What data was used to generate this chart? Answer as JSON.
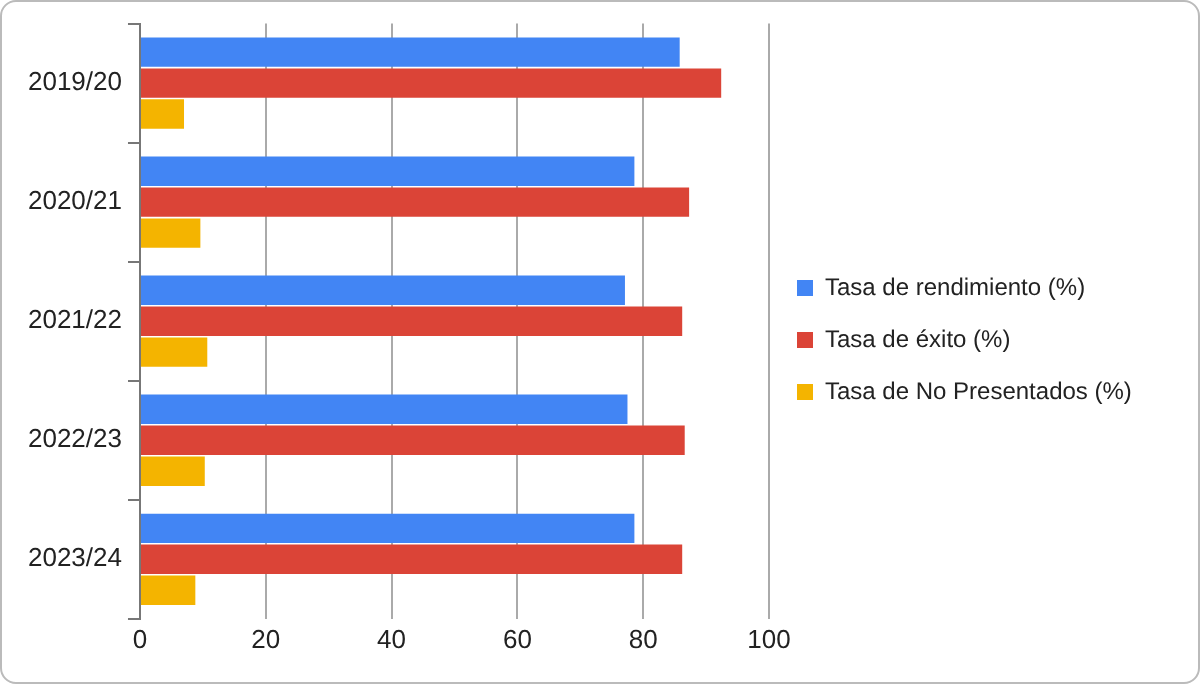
{
  "chart_data": {
    "type": "bar",
    "orientation": "horizontal",
    "categories": [
      "2019/20",
      "2020/21",
      "2021/22",
      "2022/23",
      "2023/24"
    ],
    "series": [
      {
        "name": "Tasa de rendimiento (%)",
        "color": "#4285f4",
        "values": [
          85.8,
          78.6,
          77.1,
          77.5,
          78.6
        ]
      },
      {
        "name": "Tasa de éxito (%)",
        "color": "#db4437",
        "values": [
          92.4,
          87.3,
          86.2,
          86.6,
          86.2
        ]
      },
      {
        "name": "Tasa de No Presentados (%)",
        "color": "#f4b400",
        "values": [
          7.0,
          9.6,
          10.7,
          10.3,
          8.8
        ]
      }
    ],
    "xlim": [
      0,
      100
    ],
    "xticks": [
      0,
      20,
      40,
      60,
      80,
      100
    ],
    "grid": "x",
    "legend": "right"
  }
}
